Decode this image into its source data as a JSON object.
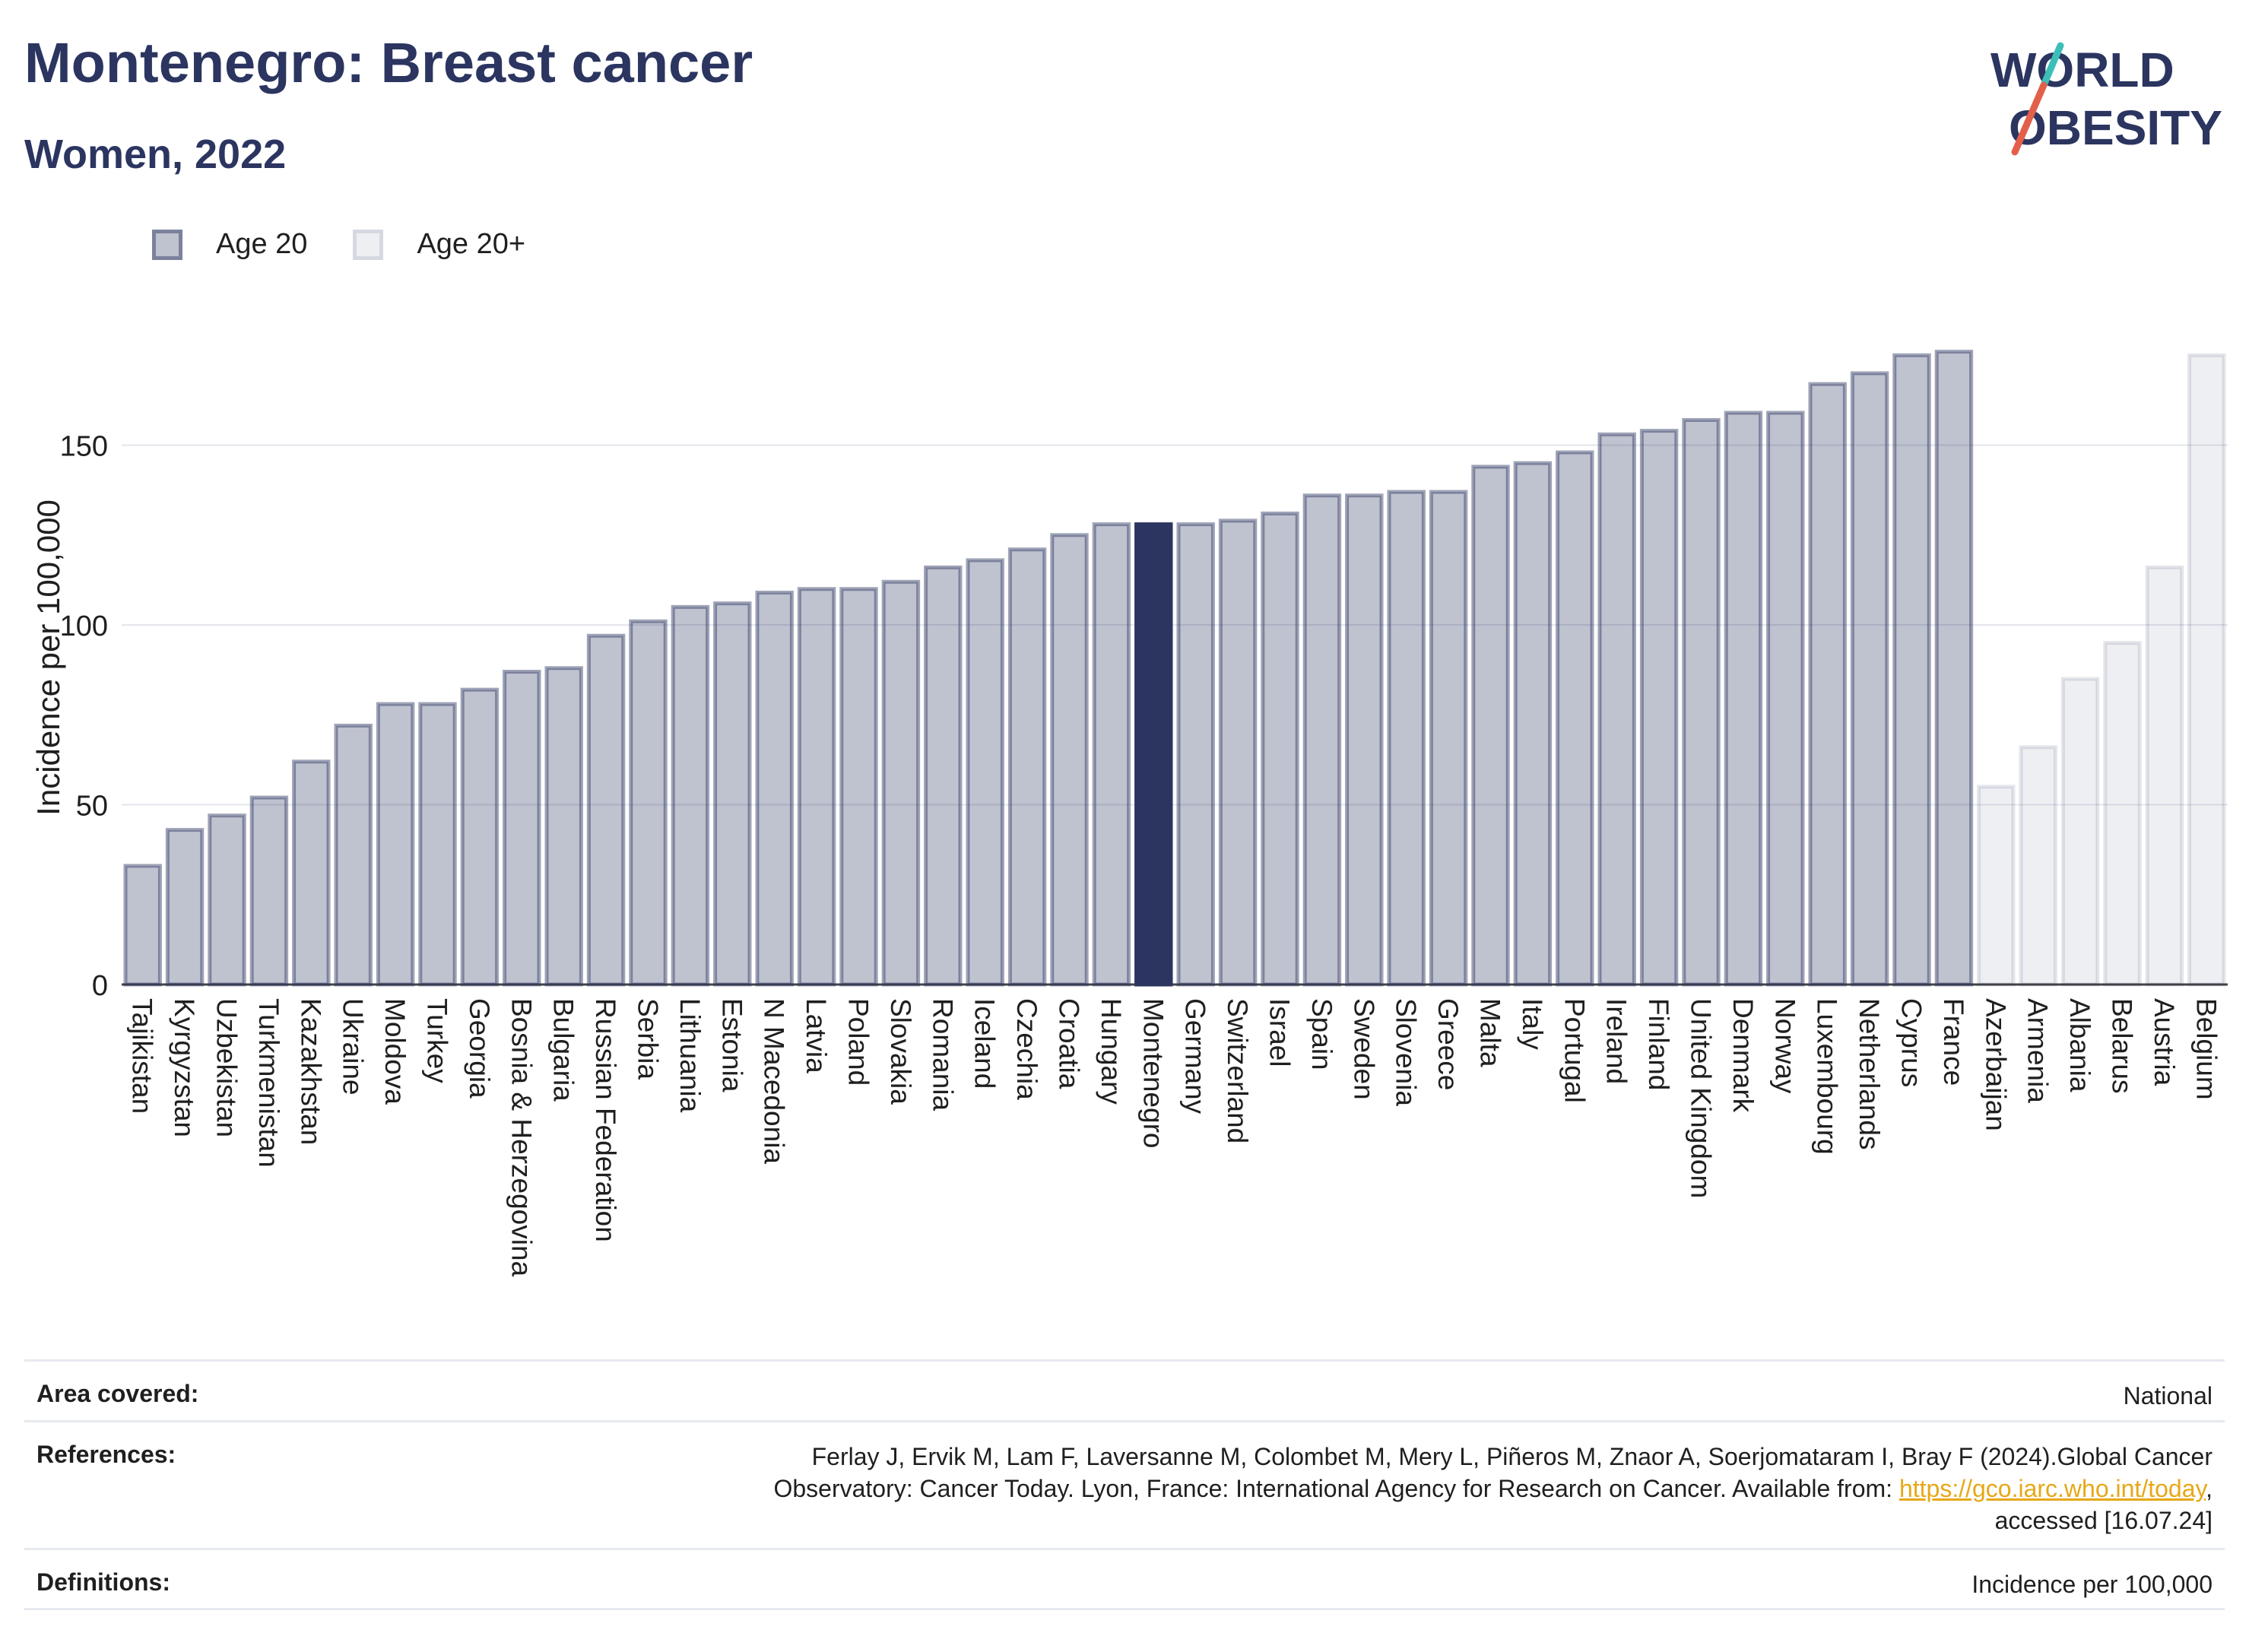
{
  "header": {
    "title": "Montenegro: Breast cancer",
    "subtitle": "Women, 2022"
  },
  "logo": {
    "line1": "WORLD",
    "line2": "OBESITY",
    "color": "#2b3560",
    "accent_teal": "#3bbfb8",
    "accent_red": "#e2604a"
  },
  "legend": {
    "items": [
      {
        "label": "Age 20"
      },
      {
        "label": "Age 20+"
      }
    ]
  },
  "chart_data": {
    "type": "bar",
    "ylabel": "Incidence per 100,000",
    "xlabel": "",
    "ylim": [
      0,
      185
    ],
    "yticks": [
      0,
      50,
      100,
      150
    ],
    "grid": true,
    "legend_position": "top-left",
    "highlight": "Montenegro",
    "colors": {
      "age20": "#2b3560",
      "highlight": "#2b3560"
    },
    "series": [
      {
        "name": "Age 20",
        "categories": [
          "Tajikistan",
          "Kyrgyzstan",
          "Uzbekistan",
          "Turkmenistan",
          "Kazakhstan",
          "Ukraine",
          "Moldova",
          "Turkey",
          "Georgia",
          "Bosnia & Herzegovina",
          "Bulgaria",
          "Russian Federation",
          "Serbia",
          "Lithuania",
          "Estonia",
          "N Macedonia",
          "Latvia",
          "Poland",
          "Slovakia",
          "Romania",
          "Iceland",
          "Czechia",
          "Croatia",
          "Hungary",
          "Montenegro",
          "Germany",
          "Switzerland",
          "Israel",
          "Spain",
          "Sweden",
          "Slovenia",
          "Greece",
          "Malta",
          "Italy",
          "Portugal",
          "Ireland",
          "Finland",
          "United Kingdom",
          "Denmark",
          "Norway",
          "Luxembourg",
          "Netherlands",
          "Cyprus",
          "France"
        ],
        "values": [
          33,
          43,
          47,
          52,
          62,
          72,
          78,
          78,
          82,
          87,
          88,
          97,
          101,
          105,
          106,
          109,
          110,
          110,
          112,
          116,
          118,
          121,
          125,
          128,
          128,
          128,
          129,
          131,
          136,
          136,
          137,
          137,
          144,
          145,
          148,
          153,
          154,
          157,
          159,
          159,
          167,
          170,
          175,
          176
        ]
      },
      {
        "name": "Age 20+",
        "categories": [
          "Azerbaijan",
          "Armenia",
          "Albania",
          "Belarus",
          "Austria",
          "Belgium"
        ],
        "values": [
          55,
          66,
          85,
          95,
          116,
          175
        ]
      }
    ]
  },
  "info_table": {
    "area_label": "Area covered:",
    "area_value": "National",
    "references_label": "References:",
    "references_text_1": "Ferlay J, Ervik M, Lam F, Laversanne M, Colombet M, Mery L, Piñeros M, Znaor A, Soerjomataram I, Bray F (2024).Global Cancer",
    "references_text_2": "Observatory: Cancer Today. Lyon, France: International Agency for Research on Cancer. Available from: ",
    "references_link": "https://gco.iarc.who.int/today",
    "references_text_3": ",",
    "references_text_4": "accessed [16.07.24]",
    "definitions_label": "Definitions:",
    "definitions_value": "Incidence per 100,000"
  }
}
